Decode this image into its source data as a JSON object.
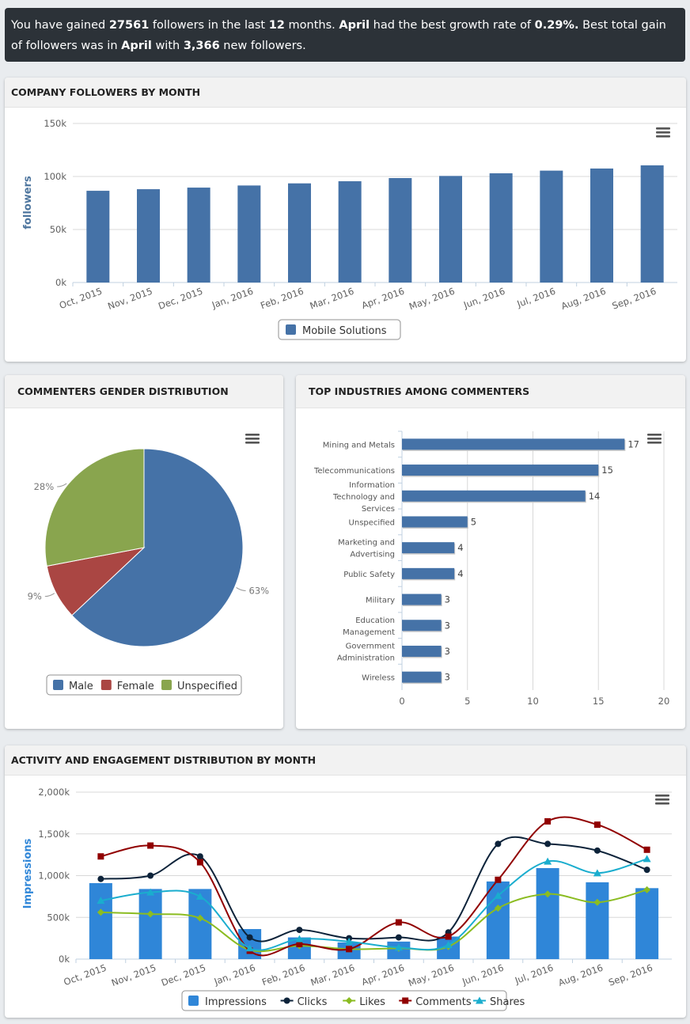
{
  "banner": {
    "p1": "You have gained ",
    "total_gain": "27561",
    "p2": " followers in the last ",
    "months": "12",
    "p3": " months. ",
    "best_growth_month": "April",
    "p4": " had the best growth rate of ",
    "best_growth_rate": "0.29%.",
    "p5": " Best total gain of followers was in ",
    "best_gain_month": "April",
    "p6": " with ",
    "best_gain_value": "3,366",
    "p7": " new followers."
  },
  "panels": {
    "followers_title": "COMPANY FOLLOWERS BY MONTH",
    "gender_title": "COMMENTERS GENDER DISTRIBUTION",
    "industries_title": "TOP INDUSTRIES AMONG COMMENTERS",
    "activity_title": "ACTIVITY AND ENGAGEMENT DISTRIBUTION BY MONTH"
  },
  "colors": {
    "bar_blue": "#4572a7",
    "impressions": "#2f86d8",
    "clicks": "#0d233a",
    "likes": "#8bbc21",
    "comments": "#910000",
    "shares": "#1aadce",
    "female": "#aa4643",
    "unspecified": "#89a54e"
  },
  "chart_data": [
    {
      "id": "followers",
      "type": "bar",
      "title": "COMPANY FOLLOWERS BY MONTH",
      "ylabel": "followers",
      "ylim": [
        0,
        150000
      ],
      "yticks": [
        "0k",
        "50k",
        "100k",
        "150k"
      ],
      "categories": [
        "Oct, 2015",
        "Nov, 2015",
        "Dec, 2015",
        "Jan, 2016",
        "Feb, 2016",
        "Mar, 2016",
        "Apr, 2016",
        "May, 2016",
        "Jun, 2016",
        "Jul, 2016",
        "Aug, 2016",
        "Sep, 2016"
      ],
      "series": [
        {
          "name": "Mobile Solutions",
          "values": [
            86500,
            88000,
            89500,
            91500,
            93500,
            95500,
            98500,
            100500,
            103000,
            105500,
            107500,
            110500
          ]
        }
      ]
    },
    {
      "id": "gender",
      "type": "pie",
      "title": "COMMENTERS GENDER DISTRIBUTION",
      "slices": [
        {
          "name": "Male",
          "value": 63,
          "label": "63%"
        },
        {
          "name": "Female",
          "value": 9,
          "label": "9%"
        },
        {
          "name": "Unspecified",
          "value": 28,
          "label": "28%"
        }
      ]
    },
    {
      "id": "industries",
      "type": "bar",
      "orientation": "horizontal",
      "title": "TOP INDUSTRIES AMONG COMMENTERS",
      "xlim": [
        0,
        20
      ],
      "xticks": [
        "0",
        "5",
        "10",
        "15",
        "20"
      ],
      "categories": [
        [
          "Mining and Metals"
        ],
        [
          "Telecommunications"
        ],
        [
          "Information",
          "Technology and",
          "Services"
        ],
        [
          "Unspecified"
        ],
        [
          "Marketing and",
          "Advertising"
        ],
        [
          "Public Safety"
        ],
        [
          "Military"
        ],
        [
          "Education",
          "Management"
        ],
        [
          "Government",
          "Administration"
        ],
        [
          "Wireless"
        ]
      ],
      "values": [
        17,
        15,
        14,
        5,
        4,
        4,
        3,
        3,
        3,
        3
      ]
    },
    {
      "id": "activity",
      "type": "bar+line",
      "title": "ACTIVITY AND ENGAGEMENT DISTRIBUTION BY MONTH",
      "ylabel": "Impressions",
      "ylim": [
        0,
        2000000
      ],
      "yticks": [
        "0k",
        "500k",
        "1,000k",
        "1,500k",
        "2,000k"
      ],
      "categories": [
        "Oct, 2015",
        "Nov, 2015",
        "Dec, 2015",
        "Jan, 2016",
        "Feb, 2016",
        "Mar, 2016",
        "Apr, 2016",
        "May, 2016",
        "Jun, 2016",
        "Jul, 2016",
        "Aug, 2016",
        "Sep, 2016"
      ],
      "series": [
        {
          "name": "Impressions",
          "kind": "bar",
          "values": [
            910000,
            840000,
            840000,
            360000,
            260000,
            200000,
            210000,
            270000,
            930000,
            1090000,
            920000,
            850000
          ]
        },
        {
          "name": "Clicks",
          "kind": "line",
          "marker": "circle",
          "values": [
            960000,
            1000000,
            1230000,
            260000,
            350000,
            250000,
            260000,
            320000,
            1380000,
            1380000,
            1300000,
            1070000
          ]
        },
        {
          "name": "Likes",
          "kind": "line",
          "marker": "diamond",
          "values": [
            560000,
            540000,
            490000,
            110000,
            160000,
            120000,
            130000,
            150000,
            610000,
            780000,
            680000,
            830000
          ]
        },
        {
          "name": "Comments",
          "kind": "line",
          "marker": "square",
          "values": [
            1230000,
            1360000,
            1160000,
            100000,
            180000,
            120000,
            440000,
            270000,
            950000,
            1650000,
            1610000,
            1310000
          ]
        },
        {
          "name": "Shares",
          "kind": "line",
          "marker": "triangle",
          "values": [
            700000,
            800000,
            750000,
            130000,
            240000,
            210000,
            140000,
            170000,
            760000,
            1170000,
            1030000,
            1200000
          ]
        }
      ]
    }
  ]
}
